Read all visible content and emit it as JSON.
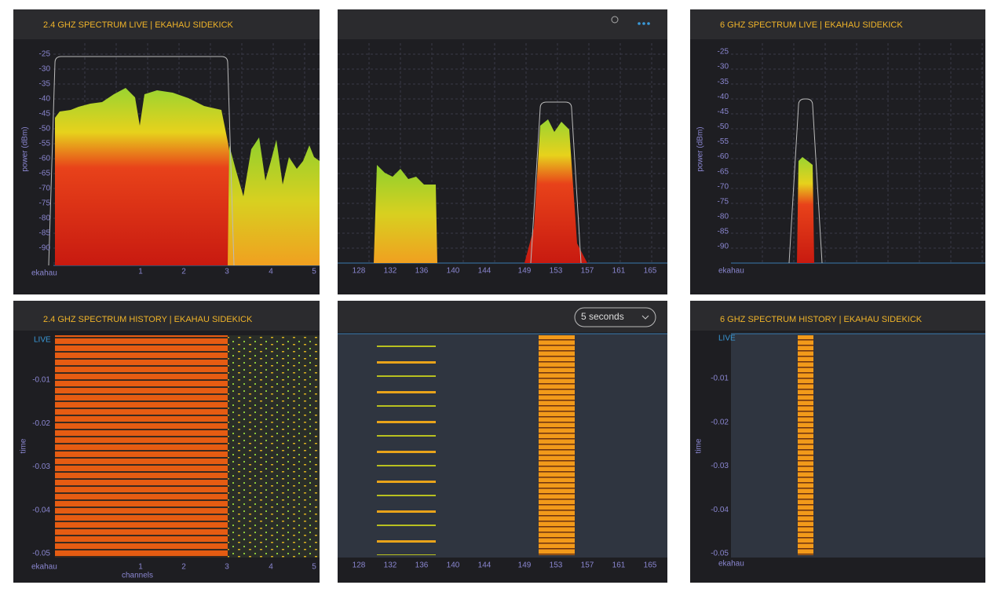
{
  "panels": [
    {
      "title": "2.4 GHZ SPECTRUM LIVE | EKAHAU SIDEKICK",
      "y_label": "power (dBm)",
      "y_ticks": [
        -25,
        -30,
        -35,
        -40,
        -45,
        -50,
        -55,
        -60,
        -65,
        -70,
        -75,
        -80,
        -85,
        -90
      ],
      "x_ticks": [
        1,
        2,
        3,
        4,
        5
      ],
      "brand": "ekahau"
    },
    {
      "title": "2.4 GHZ SPECTRUM HISTORY | EKAHAU SIDEKICK",
      "live": "LIVE",
      "y_label": "time",
      "y_ticks": [
        -0.01,
        -0.02,
        -0.03,
        -0.04,
        -0.05
      ],
      "x_ticks": [
        1,
        2,
        3,
        4,
        5
      ],
      "x_label": "channels",
      "brand": "ekahau"
    },
    {
      "x_ticks": [
        128,
        132,
        136,
        140,
        144,
        149,
        153,
        157,
        161,
        165
      ]
    },
    {
      "dropdown": "5 seconds",
      "x_ticks": [
        128,
        132,
        136,
        140,
        144,
        149,
        153,
        157,
        161,
        165
      ]
    },
    {
      "title": "6 GHZ SPECTRUM LIVE | EKAHAU SIDEKICK",
      "y_label": "power (dBm)",
      "y_ticks": [
        -25,
        -30,
        -35,
        -40,
        -45,
        -50,
        -55,
        -60,
        -65,
        -70,
        -75,
        -80,
        -85,
        -90
      ],
      "brand": "ekahau"
    },
    {
      "title": "6 GHZ SPECTRUM HISTORY | EKAHAU SIDEKICK",
      "live": "LIVE",
      "y_label": "time",
      "y_ticks": [
        -0.01,
        -0.02,
        -0.03,
        -0.04,
        -0.05
      ],
      "brand": "ekahau"
    }
  ]
}
